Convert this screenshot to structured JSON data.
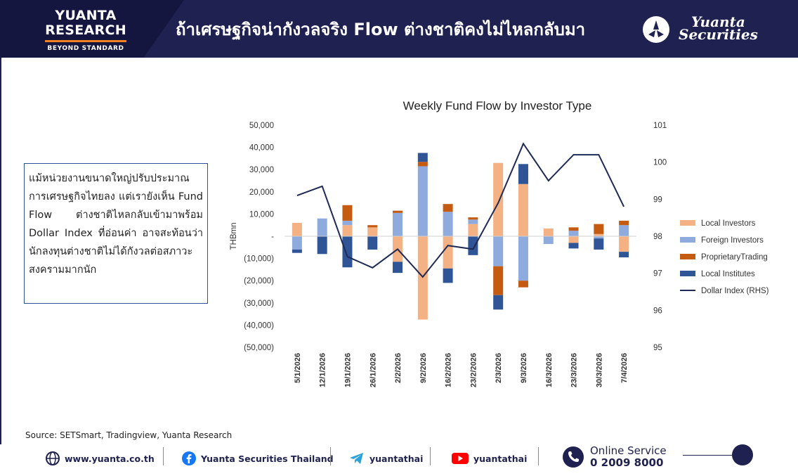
{
  "header": {
    "brand_line1": "YUANTA",
    "brand_line2": "RESEARCH",
    "brand_tagline": "BEYOND STANDARD",
    "title": "ถ้าเศรษฐกิจน่ากังวลจริง Flow ต่างชาติคงไม่ไหลกลับมา",
    "logo_line1": "Yuanta",
    "logo_line2": "Securities"
  },
  "commentary": {
    "text": "แม้หน่วยงานขนาดใหญ่ปรับประมาณการเศรษฐกิจไทยลง แต่เรายังเห็น Fund Flow ต่างชาติไหลกลับเข้ามาพร้อม Dollar Index ที่อ่อนค่า อาจสะท้อนว่านักลงทุนต่างชาติไม่ได้กังวลต่อสภาวะสงครามมากนัก"
  },
  "chart_data": {
    "type": "bar",
    "title": "Weekly Fund Flow by Investor Type",
    "ylabel": "THBmn",
    "ylabel_right": "",
    "ylim": [
      -50000,
      50000
    ],
    "ylim_right": [
      95,
      101
    ],
    "yticks_left": [
      "50,000",
      "40,000",
      "30,000",
      "20,000",
      "10,000",
      "-",
      "(10,000)",
      "(20,000)",
      "(30,000)",
      "(40,000)",
      "(50,000)"
    ],
    "yticks_right": [
      "101",
      "100",
      "99",
      "98",
      "97",
      "96",
      "95"
    ],
    "categories": [
      "5/1/2026",
      "12/1/2026",
      "19/1/2026",
      "26/1/2026",
      "2/2/2026",
      "9/2/2026",
      "16/2/2026",
      "23/2/2026",
      "2/3/2026",
      "9/3/2026",
      "16/3/2026",
      "23/3/2026",
      "30/3/2026",
      "7/4/2026"
    ],
    "series": [
      {
        "name": "Local Investors",
        "color": "#f4b183",
        "values": [
          6000,
          0,
          5000,
          4000,
          -11500,
          -37500,
          -14500,
          5500,
          33000,
          23500,
          3500,
          -3000,
          1000,
          -7000
        ]
      },
      {
        "name": "Foreign Investors",
        "color": "#8faadc",
        "values": [
          -6000,
          8000,
          2000,
          0,
          10500,
          31500,
          11000,
          2000,
          -13500,
          -20000,
          -3500,
          2500,
          -1000,
          5000
        ]
      },
      {
        "name": "ProprietaryTrading",
        "color": "#c55a11",
        "values": [
          0,
          0,
          7000,
          1000,
          1000,
          2000,
          3500,
          1000,
          -13000,
          -3000,
          0,
          1500,
          4500,
          2000
        ]
      },
      {
        "name": "Local Institutes",
        "color": "#2f5597",
        "values": [
          -1500,
          -8000,
          -14000,
          -6000,
          -5000,
          4000,
          -6500,
          -8500,
          -6500,
          9000,
          0,
          -2500,
          -5000,
          -2500
        ]
      },
      {
        "name": "Dollar Index (RHS)",
        "color": "#1f2a55",
        "axis": "right",
        "values": [
          99.1,
          99.35,
          97.45,
          97.15,
          97.65,
          96.9,
          97.75,
          97.65,
          98.9,
          100.5,
          99.5,
          100.2,
          100.2,
          98.8
        ]
      }
    ],
    "legend_position": "right",
    "grid": false
  },
  "source": "Source: SETSmart, Tradingview, Yuanta Research",
  "footer": {
    "website": "www.yuanta.co.th",
    "facebook": "Yuanta Securities Thailand",
    "telegram": "yuantathai",
    "youtube": "yuantathai",
    "service_label": "Online Service",
    "service_phone": "0 2009 8000"
  }
}
